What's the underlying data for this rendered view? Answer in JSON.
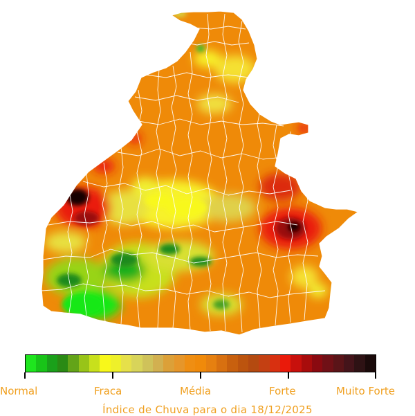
{
  "map": {
    "region": "Tocantins",
    "colors": {
      "base": "#ef8a08",
      "light_orange": "#f4a020",
      "yellow": "#f7f22a",
      "pale_yellow": "#f0e040",
      "light_green": "#7ad62a",
      "green": "#12e812",
      "dark_green": "#1f8a1f",
      "red": "#ea1a0a",
      "dark_red": "#9a1010",
      "black": "#150505",
      "borders": "#ffffff"
    }
  },
  "legend": {
    "swatches": [
      "#1ee61e",
      "#18c418",
      "#1aa01a",
      "#2a8a14",
      "#63a418",
      "#98c418",
      "#c8e01c",
      "#f8f81a",
      "#eef02a",
      "#e6e04a",
      "#d8d45a",
      "#cfc25a",
      "#d2b050",
      "#dca038",
      "#e6962a",
      "#ef8e12",
      "#f08a0a",
      "#e68010",
      "#d87010",
      "#c8600e",
      "#bc540e",
      "#b44a10",
      "#c44012",
      "#d83010",
      "#ea1a0a",
      "#c8100c",
      "#a80c0c",
      "#8a0a10",
      "#701016",
      "#5a1418",
      "#44141a",
      "#2e1214",
      "#1a0a0a"
    ],
    "ticks": [
      0,
      0.25,
      0.5,
      0.75,
      1
    ],
    "labels": [
      "Normal",
      "Fraca",
      "Média",
      "Forte",
      "Muito Forte"
    ]
  },
  "caption": "Índice de Chuva para o dia 18/12/2025"
}
